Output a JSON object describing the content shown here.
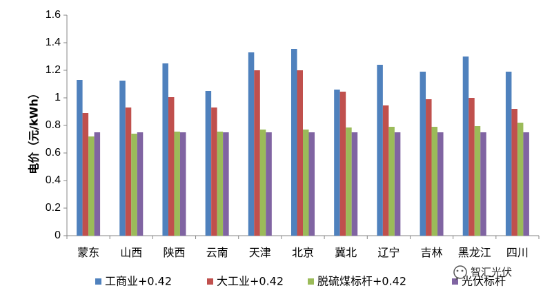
{
  "chart_data": {
    "type": "bar",
    "ylabel": "电价（元/kWh）",
    "ylim": [
      0,
      1.6
    ],
    "yticks": [
      "0",
      "0.2",
      "0.4",
      "0.6",
      "0.8",
      "1",
      "1.2",
      "1.4",
      "1.6"
    ],
    "ytick_values": [
      0,
      0.2,
      0.4,
      0.6,
      0.8,
      1.0,
      1.2,
      1.4,
      1.6
    ],
    "grid": false,
    "legend_position": "bottom",
    "categories": [
      "蒙东",
      "山西",
      "陕西",
      "云南",
      "天津",
      "北京",
      "冀北",
      "辽宁",
      "吉林",
      "黑龙江",
      "四川"
    ],
    "series": [
      {
        "name": "工商业+0.42",
        "color": "#4F81BD",
        "values": [
          1.13,
          1.125,
          1.25,
          1.05,
          1.33,
          1.355,
          1.06,
          1.24,
          1.19,
          1.3,
          1.19
        ]
      },
      {
        "name": "大工业+0.42",
        "color": "#C0504D",
        "values": [
          0.89,
          0.93,
          1.005,
          0.93,
          1.2,
          1.2,
          1.045,
          0.945,
          0.99,
          1.0,
          0.92
        ]
      },
      {
        "name": "脱硫煤标杆+0.42",
        "color": "#9BBB59",
        "values": [
          0.72,
          0.74,
          0.755,
          0.755,
          0.77,
          0.77,
          0.785,
          0.79,
          0.79,
          0.795,
          0.82
        ]
      },
      {
        "name": "光伏标杆",
        "color": "#8064A2",
        "values": [
          0.75,
          0.75,
          0.75,
          0.75,
          0.75,
          0.75,
          0.75,
          0.75,
          0.75,
          0.75,
          0.75
        ]
      }
    ]
  },
  "watermark": {
    "text": "智汇光伏",
    "icon": "wechat-icon"
  }
}
